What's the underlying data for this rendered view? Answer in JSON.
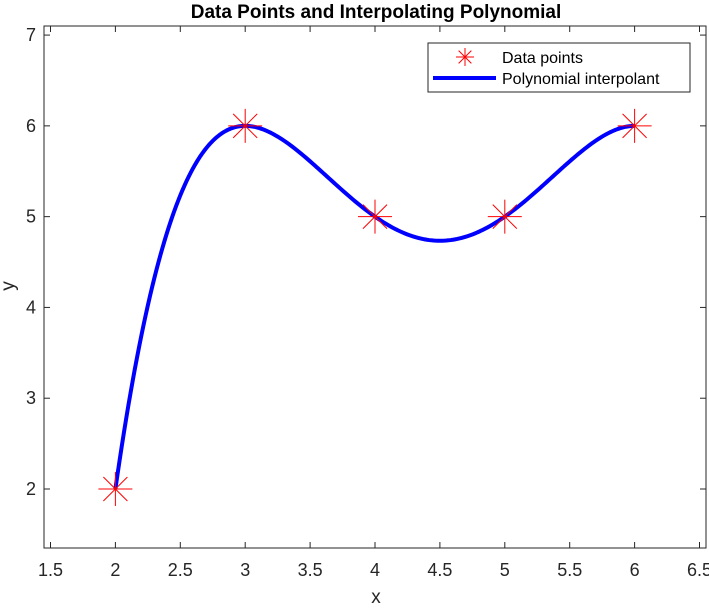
{
  "chart_data": {
    "type": "line",
    "title": "Data Points and Interpolating Polynomial",
    "xlabel": "x",
    "ylabel": "y",
    "xlim": [
      1.45,
      6.55
    ],
    "ylim": [
      1.35,
      7.1
    ],
    "xticks": [
      1.5,
      2,
      2.5,
      3,
      3.5,
      4,
      4.5,
      5,
      5.5,
      6,
      6.5
    ],
    "xtick_labels": [
      "1.5",
      "2",
      "2.5",
      "3",
      "3.5",
      "4",
      "4.5",
      "5",
      "5.5",
      "6",
      "6.5"
    ],
    "yticks": [
      2,
      3,
      4,
      5,
      6,
      7
    ],
    "ytick_labels": [
      "2",
      "3",
      "4",
      "5",
      "6",
      "7"
    ],
    "grid": false,
    "legend_position": "top-right",
    "series": [
      {
        "name": "Data points",
        "kind": "markers",
        "marker": "asterisk",
        "color": "#ff0000",
        "x": [
          2,
          3,
          4,
          5,
          6
        ],
        "y": [
          2,
          6,
          5,
          5,
          6
        ]
      },
      {
        "name": "Polynomial interpolant",
        "kind": "line",
        "color": "#0000ff",
        "x": [
          2,
          3,
          4,
          5,
          6
        ],
        "y": [
          2,
          6,
          5,
          5,
          6
        ]
      }
    ]
  }
}
